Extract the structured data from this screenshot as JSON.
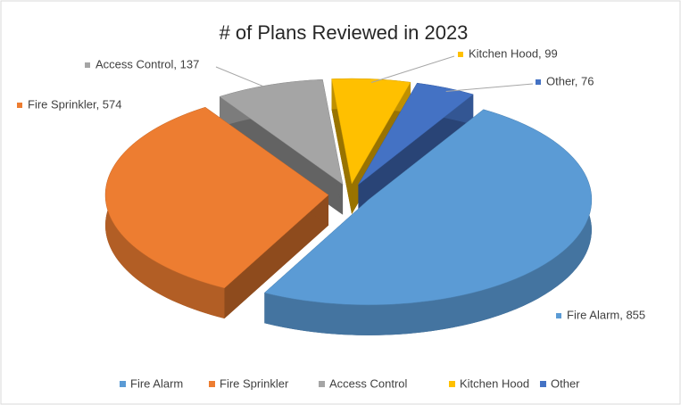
{
  "chart_data": {
    "type": "pie",
    "title": "# of Plans Reviewed in 2023",
    "categories": [
      "Fire Alarm",
      "Fire Sprinkler",
      "Access Control",
      "Kitchen Hood",
      "Other"
    ],
    "values": [
      855,
      574,
      137,
      99,
      76
    ],
    "value_labels": [
      "Fire Alarm, 855",
      "Fire Sprinkler, 574",
      "Access Control, 137",
      "Kitchen Hood, 99",
      "Other, 76"
    ],
    "colors": [
      "#5b9bd5",
      "#ed7d31",
      "#a5a5a5",
      "#ffc000",
      "#4472c4"
    ],
    "legend": "bottom"
  }
}
